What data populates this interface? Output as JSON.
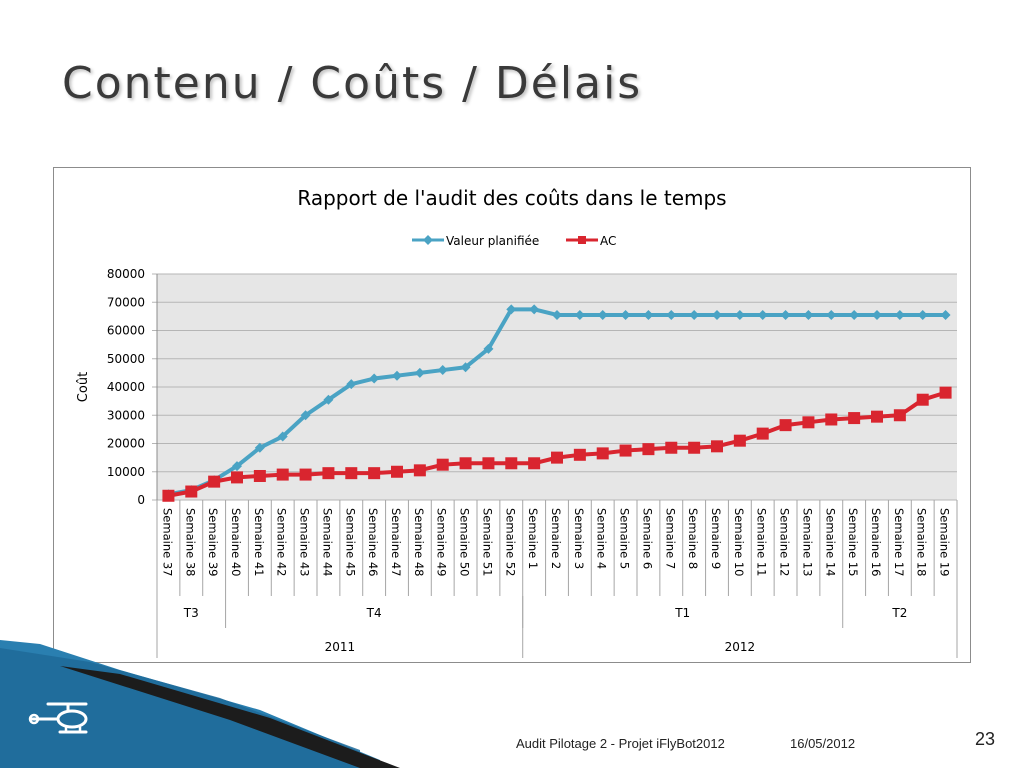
{
  "slide": {
    "title": "Contenu / Coûts / Délais",
    "footer_text": "Audit Pilotage 2 - Projet iFlyBot2012",
    "footer_date": "16/05/2012",
    "page_number": "23",
    "logo_icon": "helicopter-icon"
  },
  "colors": {
    "planned": "#4aa3c4",
    "actual": "#d9252f",
    "plot_bg": "#e6e6e6",
    "grid": "#b5b5b5",
    "decor_blue": "#2a7fb0",
    "decor_dark": "#1c1c1c"
  },
  "chart_data": {
    "type": "line",
    "title": "Rapport de l'audit des coûts dans le temps",
    "xlabel": "",
    "ylabel": "Coût",
    "ylim": [
      0,
      80000
    ],
    "yticks": [
      "80000",
      "70000",
      "60000",
      "50000",
      "40000",
      "30000",
      "20000",
      "10000",
      "0"
    ],
    "grid": true,
    "legend_position": "top-center",
    "categories": [
      "Semaine 37",
      "Semaine 38",
      "Semaine 39",
      "Semaine 40",
      "Semaine 41",
      "Semaine 42",
      "Semaine 43",
      "Semaine 44",
      "Semaine 45",
      "Semaine 46",
      "Semaine 47",
      "Semaine 48",
      "Semaine 49",
      "Semaine 50",
      "Semaine 51",
      "Semaine 52",
      "Semaine 1",
      "Semaine 2",
      "Semaine 3",
      "Semaine 4",
      "Semaine 5",
      "Semaine 6",
      "Semaine 7",
      "Semaine 8",
      "Semaine 9",
      "Semaine 10",
      "Semaine 11",
      "Semaine 12",
      "Semaine 13",
      "Semaine 14",
      "Semaine 15",
      "Semaine 16",
      "Semaine 17",
      "Semaine 18",
      "Semaine 19"
    ],
    "quarters": [
      {
        "label": "T3",
        "span": 3
      },
      {
        "label": "T4",
        "span": 13
      },
      {
        "label": "T1",
        "span": 14
      },
      {
        "label": "T2",
        "span": 5
      }
    ],
    "years": [
      {
        "label": "2011",
        "span": 16
      },
      {
        "label": "2012",
        "span": 19
      }
    ],
    "series": [
      {
        "name": "Valeur planifiée",
        "values": [
          2000,
          3500,
          7000,
          12000,
          18500,
          22500,
          30000,
          35500,
          41000,
          43000,
          44000,
          45000,
          46000,
          47000,
          53500,
          67500,
          67500,
          65500,
          65500,
          65500,
          65500,
          65500,
          65500,
          65500,
          65500,
          65500,
          65500,
          65500,
          65500,
          65500,
          65500,
          65500,
          65500,
          65500,
          65500
        ]
      },
      {
        "name": "AC",
        "values": [
          1500,
          3000,
          6500,
          8000,
          8500,
          9000,
          9000,
          9500,
          9500,
          9500,
          10000,
          10500,
          12500,
          13000,
          13000,
          13000,
          13000,
          15000,
          16000,
          16500,
          17500,
          18000,
          18500,
          18500,
          19000,
          21000,
          23500,
          26500,
          27500,
          28500,
          29000,
          29500,
          30000,
          35500,
          38000
        ]
      }
    ]
  }
}
